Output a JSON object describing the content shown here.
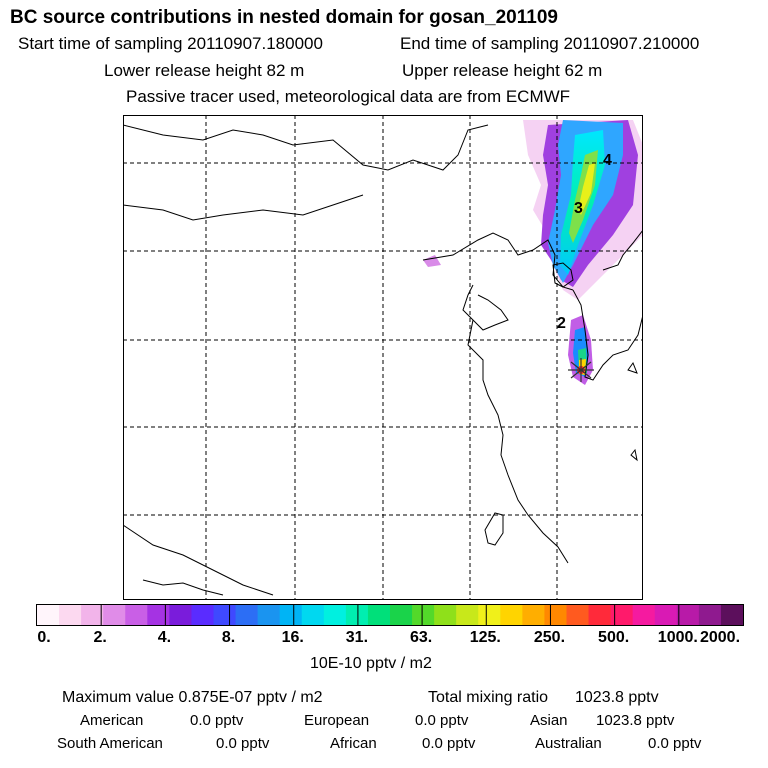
{
  "header": {
    "title": "BC  source contributions in nested domain for gosan_201109",
    "start_time": "Start time of sampling 20110907.180000",
    "end_time": "End time of sampling 20110907.210000",
    "lower_release": "Lower release height   82 m",
    "upper_release": "Upper release height   62 m",
    "tracer_note": "Passive tracer used, meteorological data are from ECMWF"
  },
  "map": {
    "plume_labels": [
      "4",
      "3",
      "2"
    ]
  },
  "colorbar": {
    "tick_labels": [
      "0.",
      "2.",
      "4.",
      "8.",
      "16.",
      "31.",
      "63.",
      "125.",
      "250.",
      "500.",
      "1000.",
      "2000."
    ],
    "colors": [
      "#fff5fb",
      "#fcd9f0",
      "#f2b4ea",
      "#e08ce8",
      "#c95fe6",
      "#a533e3",
      "#7a1cdb",
      "#5a2cff",
      "#3f49ff",
      "#2c6ef5",
      "#1a94f0",
      "#00b4f5",
      "#00d8f0",
      "#00f0e0",
      "#00eeb0",
      "#00e07a",
      "#1ad34a",
      "#53d92a",
      "#8fe01a",
      "#c8e81a",
      "#f0f01a",
      "#ffd400",
      "#ffae00",
      "#ff8800",
      "#ff5a1f",
      "#ff2a3a",
      "#ff1a6b",
      "#f51aa0",
      "#d91ab4",
      "#b81aa8",
      "#8f1a8f",
      "#5c0f5c"
    ],
    "units": "10E-10 pptv / m2"
  },
  "stats": {
    "max_value": "Maximum value  0.875E-07 pptv / m2",
    "total_label": "Total mixing ratio",
    "total_value": "1023.8 pptv",
    "american_label": "American",
    "american_value": "0.0 pptv",
    "european_label": "European",
    "european_value": "0.0 pptv",
    "asian_label": "Asian",
    "asian_value": "1023.8 pptv",
    "south_american_label": "South American",
    "south_american_value": "0.0 pptv",
    "african_label": "African",
    "african_value": "0.0 pptv",
    "australian_label": "Australian",
    "australian_value": "0.0 pptv"
  }
}
